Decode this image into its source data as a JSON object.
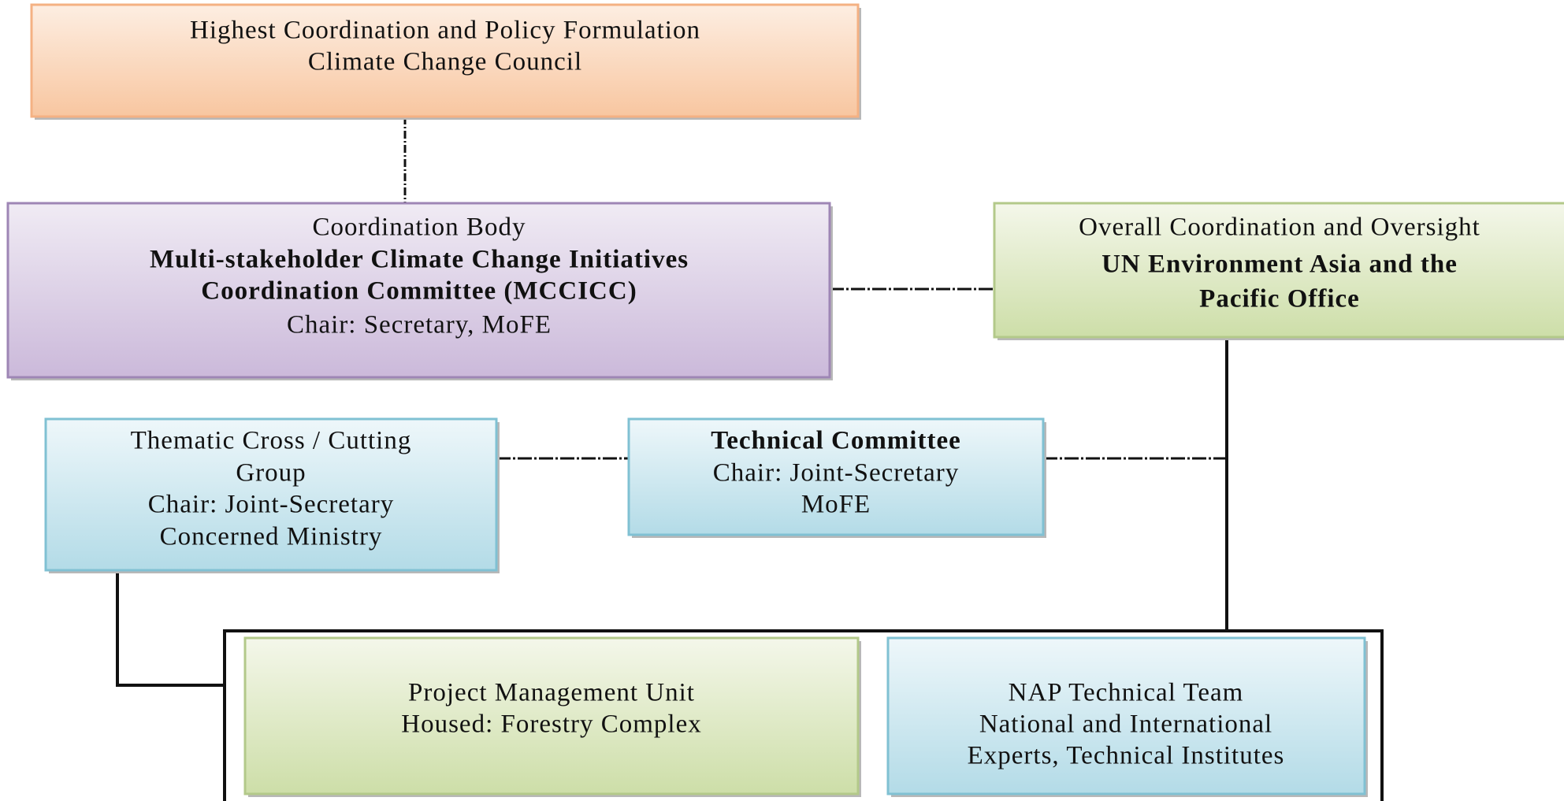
{
  "nodes": [
    {
      "lines": [
        "Highest Coordination and Policy Formulation",
        "Climate Change Council"
      ]
    },
    {
      "lines": [
        "Coordination Body",
        "Multi-stakeholder Climate Change Initiatives",
        "Coordination Committee (MCCICC)",
        "Chair: Secretary, MoFE"
      ]
    },
    {
      "lines": [
        "Overall Coordination and Oversight",
        "UN Environment Asia and the",
        "Pacific Office"
      ]
    },
    {
      "lines": [
        "Thematic Cross / Cutting",
        "Group",
        "Chair: Joint-Secretary",
        "Concerned Ministry"
      ]
    },
    {
      "lines": [
        "Technical Committee",
        "Chair: Joint-Secretary",
        "MoFE"
      ]
    },
    {
      "lines": [
        "Project Management Unit",
        "Housed: Forestry Complex"
      ]
    },
    {
      "lines": [
        "NAP Technical Team",
        "National and International",
        "Experts, Technical Institutes"
      ]
    }
  ]
}
